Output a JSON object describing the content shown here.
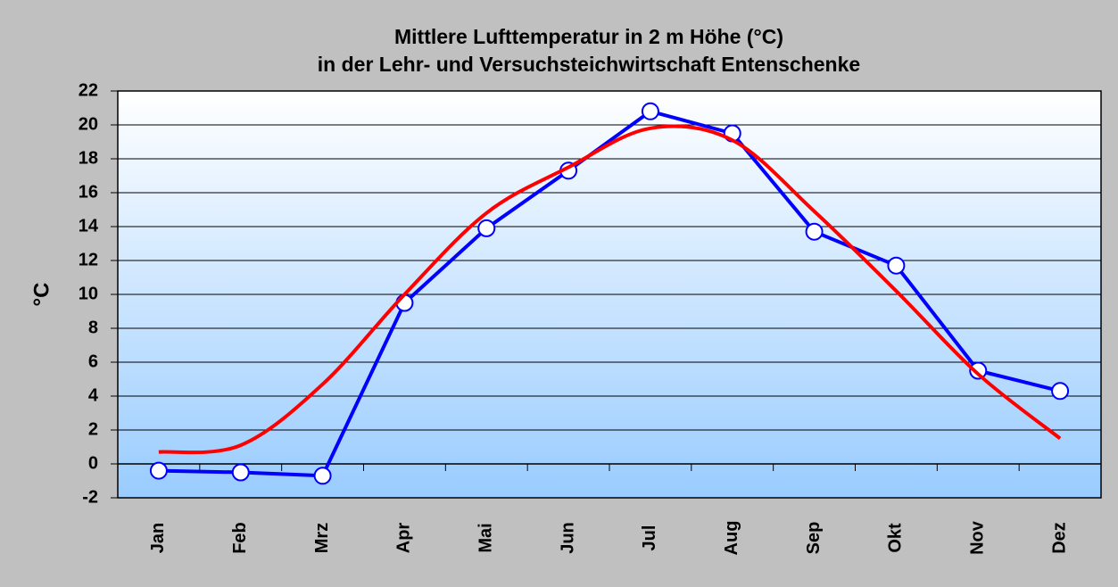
{
  "chart_data": {
    "type": "line",
    "title": "Mittlere Lufttemperatur in 2 m Höhe (°C)",
    "subtitle": "in der Lehr- und Versuchsteichwirtschaft Entenschenke",
    "y_label": "°C",
    "categories": [
      "Jan",
      "Feb",
      "Mrz",
      "Apr",
      "Mai",
      "Jun",
      "Jul",
      "Aug",
      "Sep",
      "Okt",
      "Nov",
      "Dez"
    ],
    "series": [
      {
        "color": "#0000ff",
        "markers": true,
        "smooth": false,
        "values": [
          -0.4,
          -0.5,
          -0.7,
          9.5,
          13.9,
          17.3,
          20.8,
          19.5,
          13.7,
          11.7,
          5.5,
          4.3
        ]
      },
      {
        "color": "#ff0000",
        "markers": false,
        "smooth": true,
        "values": [
          0.7,
          1.1,
          4.7,
          10.0,
          14.8,
          17.5,
          19.8,
          19.1,
          14.9,
          10.2,
          5.3,
          1.5
        ]
      }
    ],
    "ylim": [
      -2,
      22
    ],
    "yticks": [
      -2,
      0,
      2,
      4,
      6,
      8,
      10,
      12,
      14,
      16,
      18,
      20,
      22
    ],
    "grid": true
  }
}
